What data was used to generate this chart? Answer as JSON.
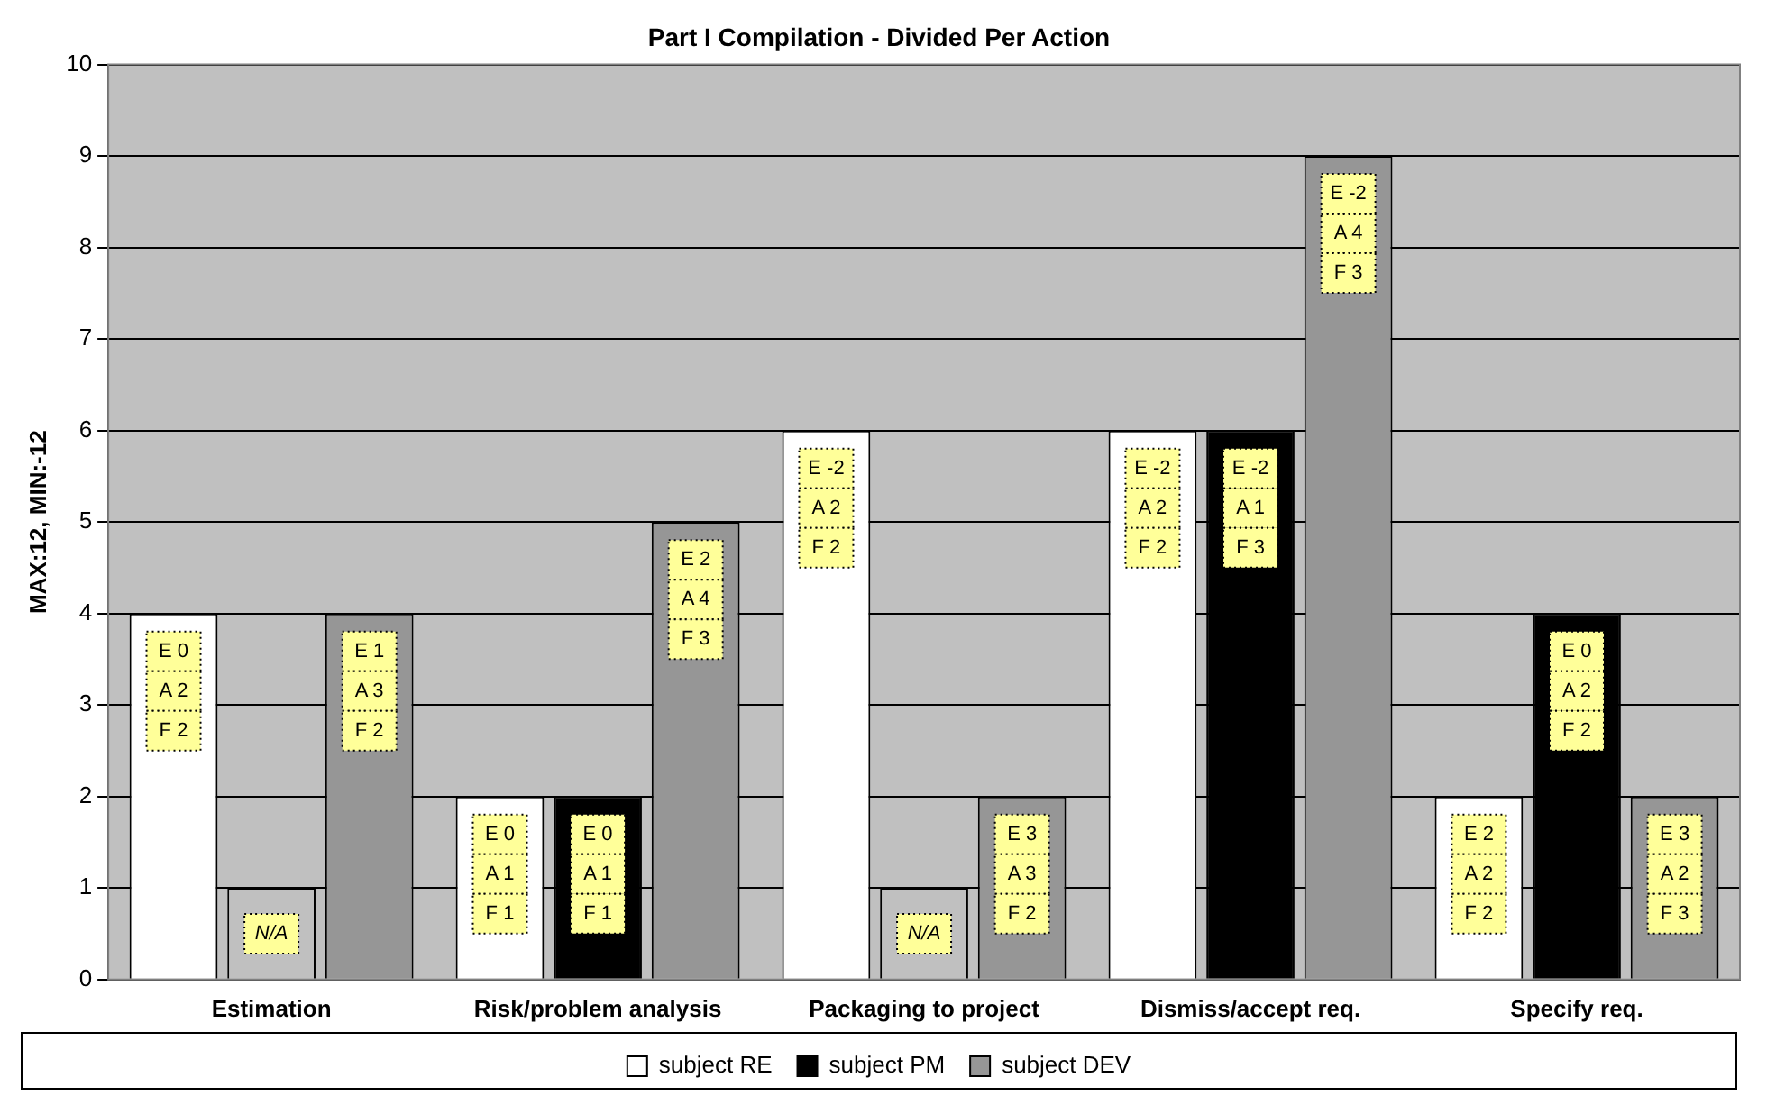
{
  "chart_data": {
    "type": "bar",
    "title": "Part I Compilation - Divided Per Action",
    "ylabel": "MAX:12, MIN:-12",
    "categories": [
      "Estimation",
      "Risk/problem analysis",
      "Packaging to project",
      "Dismiss/accept req.",
      "Specify req."
    ],
    "series": [
      {
        "name": "subject RE",
        "color": "#ffffff",
        "values": [
          4,
          2,
          6,
          6,
          2
        ],
        "value_labels": [
          "E 0\nA 2\nF 2",
          "E 0\nA 1\nF 1",
          "E -2\nA 2\nF 2",
          "E -2\nA 2\nF 2",
          "E 2\nA 2\nF 2"
        ]
      },
      {
        "name": "subject PM",
        "color": "#000000",
        "colors": [
          "#c0c0c0",
          "#000000",
          "#c0c0c0",
          "#000000",
          "#000000"
        ],
        "values": [
          1,
          2,
          1,
          6,
          4
        ],
        "value_labels": [
          "N/A",
          "E 0\nA 1\nF 1",
          "N/A",
          "E -2\nA 1\nF 3",
          "E 0\nA 2\nF 2"
        ]
      },
      {
        "name": "subject DEV",
        "color": "#969696",
        "values": [
          4,
          5,
          2,
          9,
          2
        ],
        "value_labels": [
          "E 1\nA 3\nF 2",
          "E 2\nA 4\nF 3",
          "E 3\nA 3\nF 2",
          "E -2\nA 4\nF 3",
          "E 3\nA 2\nF 3"
        ]
      }
    ],
    "ylim": [
      0,
      10
    ],
    "yticks": [
      0,
      1,
      2,
      3,
      4,
      5,
      6,
      7,
      8,
      9,
      10
    ],
    "grid": "y",
    "legend": "bottom"
  }
}
